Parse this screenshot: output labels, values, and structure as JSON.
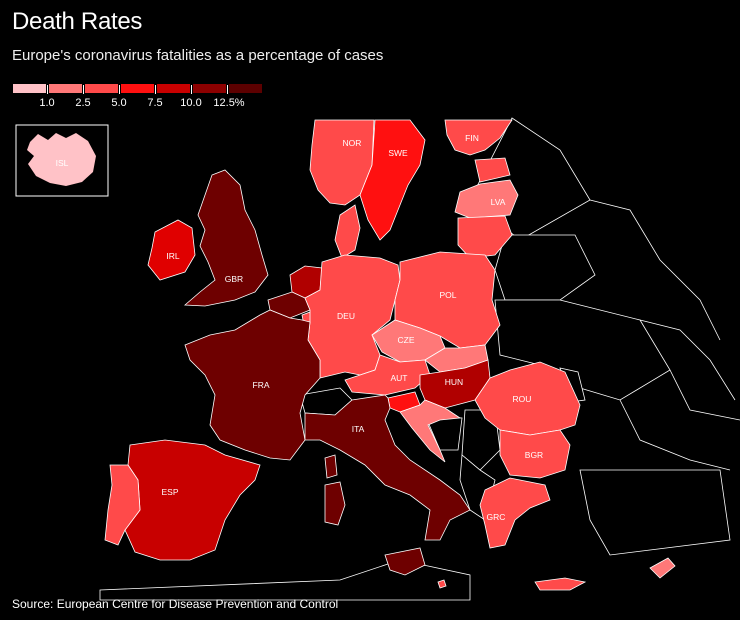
{
  "header": {
    "title": "Death Rates",
    "subtitle": "Europe's coronavirus fatalities as a percentage of cases"
  },
  "legend": {
    "bins": [
      {
        "color": "#ffc2c7",
        "label": "1.0"
      },
      {
        "color": "#ff7878",
        "label": "2.5"
      },
      {
        "color": "#ff4a4a",
        "label": "5.0"
      },
      {
        "color": "#ff1010",
        "label": "7.5"
      },
      {
        "color": "#c80000",
        "label": "10.0"
      },
      {
        "color": "#8c0000",
        "label": "12.5%"
      },
      {
        "color": "#5c0000",
        "label": ""
      }
    ]
  },
  "countries": {
    "ISL": {
      "label": "ISL",
      "color": "#ffc2c7"
    },
    "NOR": {
      "label": "NOR",
      "color": "#ff4a4a"
    },
    "SWE": {
      "label": "SWE",
      "color": "#ff1010"
    },
    "FIN": {
      "label": "FIN",
      "color": "#ff4a4a"
    },
    "EST": {
      "label": "",
      "color": "#ff4a4a"
    },
    "LVA": {
      "label": "LVA",
      "color": "#ff7878"
    },
    "LTU": {
      "label": "",
      "color": "#ff4a4a"
    },
    "DNK": {
      "label": "",
      "color": "#ff4a4a"
    },
    "IRL": {
      "label": "IRL",
      "color": "#e00000"
    },
    "GBR": {
      "label": "GBR",
      "color": "#6e0000"
    },
    "NLD": {
      "label": "",
      "color": "#b00000"
    },
    "BEL": {
      "label": "",
      "color": "#6e0000"
    },
    "LUX": {
      "label": "",
      "color": "#ff4a4a"
    },
    "DEU": {
      "label": "DEU",
      "color": "#ff4a4a"
    },
    "POL": {
      "label": "POL",
      "color": "#ff4a4a"
    },
    "CZE": {
      "label": "CZE",
      "color": "#ff7878"
    },
    "SVK": {
      "label": "",
      "color": "#ff7878"
    },
    "AUT": {
      "label": "AUT",
      "color": "#ff4a4a"
    },
    "HUN": {
      "label": "HUN",
      "color": "#b00000"
    },
    "SVN": {
      "label": "",
      "color": "#ff1010"
    },
    "HRV": {
      "label": "",
      "color": "#ff7878"
    },
    "FRA": {
      "label": "FRA",
      "color": "#6e0000"
    },
    "ITA": {
      "label": "ITA",
      "color": "#6e0000"
    },
    "ESP": {
      "label": "ESP",
      "color": "#c80000"
    },
    "PRT": {
      "label": "",
      "color": "#ff4a4a"
    },
    "ROU": {
      "label": "ROU",
      "color": "#ff4a4a"
    },
    "BGR": {
      "label": "BGR",
      "color": "#ff4a4a"
    },
    "GRC": {
      "label": "GRC",
      "color": "#ff4a4a"
    },
    "CYP": {
      "label": "",
      "color": "#ff7878"
    },
    "MLT": {
      "label": "",
      "color": "#ff4a4a"
    }
  },
  "footer": {
    "source": "Source: European Centre for Disease Prevention and Control"
  }
}
